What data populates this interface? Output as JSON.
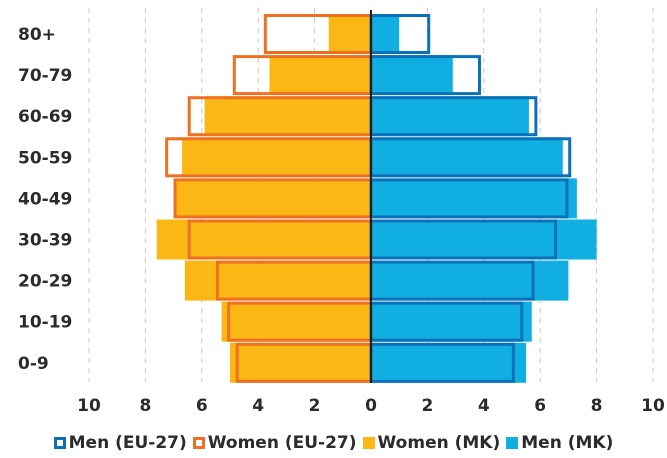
{
  "chart_data": {
    "type": "bar",
    "orientation": "horizontal-population-pyramid",
    "categories": [
      "80+",
      "70-79",
      "60-69",
      "50-59",
      "40-49",
      "30-39",
      "20-29",
      "10-19",
      "0-9"
    ],
    "series": [
      {
        "name": "Men (EU-27)",
        "side": "right",
        "style": "outline",
        "color": "#0a71b9",
        "values": [
          2.1,
          3.9,
          5.9,
          7.1,
          7.0,
          6.6,
          5.8,
          5.4,
          5.1
        ]
      },
      {
        "name": "Women (EU-27)",
        "side": "left",
        "style": "outline",
        "color": "#f07023",
        "values": [
          3.8,
          4.9,
          6.5,
          7.3,
          7.0,
          6.5,
          5.5,
          5.1,
          4.8
        ]
      },
      {
        "name": "Women (MK)",
        "side": "left",
        "style": "fill",
        "color": "#fbb814",
        "values": [
          1.5,
          3.6,
          5.9,
          6.7,
          7.0,
          7.6,
          6.6,
          5.3,
          5.0
        ]
      },
      {
        "name": "Men (MK)",
        "side": "right",
        "style": "fill",
        "color": "#11afe1",
        "values": [
          1.0,
          2.9,
          5.6,
          6.8,
          7.3,
          8.0,
          7.0,
          5.7,
          5.5
        ]
      }
    ],
    "x_ticks": [
      "10",
      "8",
      "6",
      "4",
      "2",
      "0",
      "2",
      "4",
      "6",
      "8",
      "10"
    ],
    "xlim": [
      -10,
      10
    ],
    "grid": "vertical dashed",
    "legend": "bottom"
  }
}
